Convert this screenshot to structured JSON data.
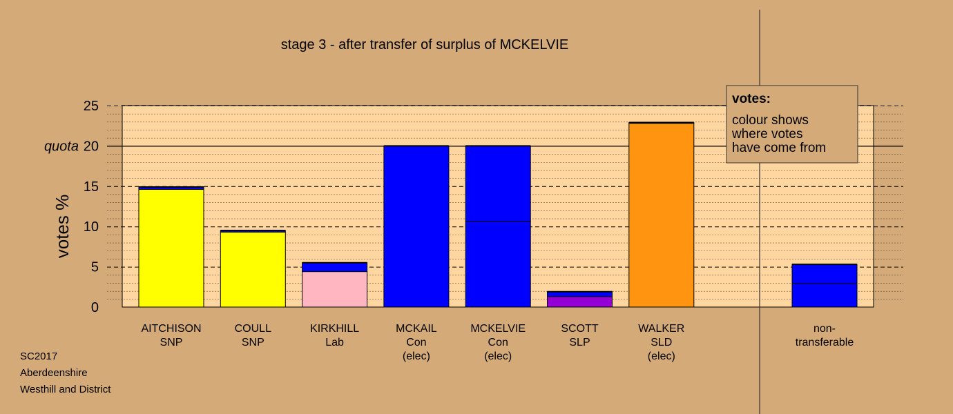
{
  "chart_data": {
    "type": "bar",
    "title": "stage 3 - after transfer of surplus of MCKELVIE",
    "ylabel": "votes %",
    "ylim": [
      0,
      25
    ],
    "yticks": [
      0,
      5,
      10,
      15,
      20,
      25
    ],
    "quota": 20,
    "quota_label": "quota",
    "grid": "dotted minor lines every 1, dashed major lines every 5, solid line at quota",
    "categories": [
      {
        "label_lines": [
          "AITCHISON",
          "SNP"
        ],
        "segments": [
          {
            "value": 14.6,
            "color": "#ffff00"
          },
          {
            "value": 0.3,
            "color": "#0000ff"
          }
        ]
      },
      {
        "label_lines": [
          "COULL",
          "SNP"
        ],
        "segments": [
          {
            "value": 9.3,
            "color": "#ffff00"
          },
          {
            "value": 0.2,
            "color": "#0000ff"
          }
        ]
      },
      {
        "label_lines": [
          "KIRKHILL",
          "Lab"
        ],
        "segments": [
          {
            "value": 4.4,
            "color": "#ffb6c1"
          },
          {
            "value": 1.1,
            "color": "#0000ff"
          }
        ]
      },
      {
        "label_lines": [
          "MCKAIL",
          "Con",
          "(elec)"
        ],
        "segments": [
          {
            "value": 20.0,
            "color": "#0000ff"
          }
        ]
      },
      {
        "label_lines": [
          "MCKELVIE",
          "Con",
          "(elec)"
        ],
        "segments": [
          {
            "value": 10.6,
            "color": "#0000ff"
          },
          {
            "value": 9.4,
            "color": "#0000ff"
          }
        ]
      },
      {
        "label_lines": [
          "SCOTT",
          "SLP"
        ],
        "segments": [
          {
            "value": 1.3,
            "color": "#9400d3"
          },
          {
            "value": 0.6,
            "color": "#0000ff"
          }
        ]
      },
      {
        "label_lines": [
          "WALKER",
          "SLD",
          "(elec)"
        ],
        "segments": [
          {
            "value": 22.8,
            "color": "#ff9410"
          },
          {
            "value": 0.1,
            "color": "#0000ff"
          }
        ]
      },
      {
        "label_lines": [
          "non-",
          "transferable"
        ],
        "separated": true,
        "segments": [
          {
            "value": 2.9,
            "color": "#0000ff"
          },
          {
            "value": 2.4,
            "color": "#0000ff"
          }
        ]
      }
    ],
    "legend": {
      "title": "votes:",
      "lines": [
        "colour shows",
        "where votes",
        "have come from"
      ],
      "placement": "top-right"
    }
  },
  "footer": {
    "lines": [
      "SC2017",
      "Aberdeenshire",
      "Westhill and District"
    ]
  },
  "colors": {
    "background": "#d4aa78",
    "plot_area": "#ffd5a0",
    "bar_outline": "#000000"
  }
}
